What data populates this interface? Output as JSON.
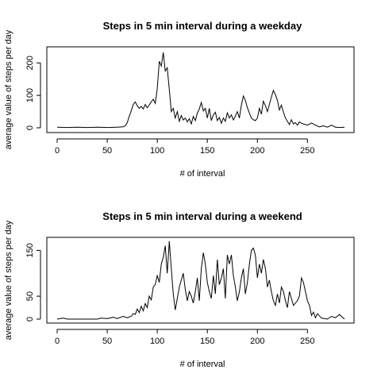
{
  "chart_data": [
    {
      "type": "line",
      "title": "Steps in 5 min interval during a weekday",
      "xlabel": "# of interval",
      "ylabel": "average value of steps per day",
      "xlim": [
        0,
        287
      ],
      "ylim": [
        0,
        230
      ],
      "xticks": [
        "0",
        "50",
        "100",
        "150",
        "200",
        "250"
      ],
      "yticks": [
        "0",
        "100",
        "200"
      ],
      "grid": false,
      "x": [
        0,
        10,
        20,
        30,
        40,
        50,
        60,
        66,
        68,
        70,
        72,
        74,
        76,
        78,
        80,
        82,
        84,
        86,
        88,
        90,
        92,
        94,
        96,
        98,
        100,
        102,
        104,
        106,
        108,
        110,
        112,
        114,
        116,
        118,
        120,
        122,
        124,
        126,
        128,
        130,
        132,
        134,
        136,
        138,
        140,
        142,
        144,
        146,
        148,
        150,
        152,
        154,
        156,
        158,
        160,
        162,
        164,
        166,
        168,
        170,
        172,
        174,
        176,
        178,
        180,
        182,
        184,
        186,
        188,
        190,
        192,
        194,
        196,
        198,
        200,
        202,
        204,
        206,
        208,
        210,
        212,
        214,
        216,
        218,
        220,
        222,
        224,
        226,
        228,
        230,
        232,
        234,
        236,
        238,
        240,
        242,
        244,
        246,
        248,
        250,
        254,
        258,
        262,
        266,
        270,
        274,
        278,
        282,
        287
      ],
      "series": [
        {
          "values": [
            2,
            1,
            2,
            1,
            2,
            1,
            2,
            3,
            6,
            16,
            35,
            52,
            72,
            80,
            68,
            60,
            66,
            58,
            72,
            62,
            70,
            80,
            88,
            75,
            120,
            205,
            190,
            232,
            175,
            185,
            118,
            50,
            60,
            30,
            50,
            20,
            38,
            24,
            30,
            18,
            28,
            12,
            35,
            22,
            45,
            58,
            78,
            52,
            60,
            30,
            60,
            22,
            40,
            48,
            22,
            32,
            14,
            30,
            20,
            46,
            30,
            40,
            24,
            36,
            50,
            30,
            70,
            98,
            85,
            62,
            45,
            30,
            25,
            22,
            30,
            60,
            42,
            82,
            68,
            50,
            72,
            95,
            115,
            102,
            85,
            55,
            70,
            48,
            30,
            20,
            10,
            25,
            12,
            16,
            8,
            18,
            14,
            12,
            10,
            8,
            15,
            8,
            3,
            6,
            2,
            8,
            2,
            1,
            2
          ]
        }
      ]
    },
    {
      "type": "line",
      "title": "Steps in 5 min interval during a weekend",
      "xlabel": "# of interval",
      "ylabel": "average value of steps per day",
      "xlim": [
        0,
        287
      ],
      "ylim": [
        0,
        175
      ],
      "xticks": [
        "0",
        "50",
        "100",
        "150",
        "200",
        "250"
      ],
      "yticks": [
        "0",
        "50",
        "150"
      ],
      "grid": false,
      "x": [
        0,
        6,
        10,
        20,
        40,
        44,
        50,
        56,
        60,
        66,
        70,
        74,
        76,
        78,
        80,
        82,
        84,
        86,
        88,
        90,
        92,
        94,
        96,
        98,
        100,
        102,
        104,
        106,
        108,
        110,
        112,
        114,
        116,
        118,
        120,
        122,
        124,
        126,
        128,
        130,
        132,
        134,
        136,
        138,
        140,
        142,
        144,
        146,
        148,
        150,
        152,
        154,
        156,
        158,
        160,
        162,
        164,
        166,
        168,
        170,
        172,
        174,
        176,
        178,
        180,
        182,
        184,
        186,
        188,
        190,
        192,
        194,
        196,
        198,
        200,
        202,
        204,
        206,
        208,
        210,
        212,
        214,
        216,
        218,
        220,
        222,
        224,
        226,
        228,
        230,
        232,
        234,
        236,
        238,
        240,
        242,
        244,
        246,
        248,
        250,
        252,
        254,
        256,
        258,
        260,
        264,
        270,
        274,
        278,
        282,
        287
      ],
      "series": [
        {
          "values": [
            0,
            2,
            0,
            0,
            0,
            2,
            1,
            4,
            1,
            6,
            3,
            6,
            12,
            10,
            22,
            14,
            28,
            18,
            34,
            25,
            50,
            42,
            70,
            75,
            95,
            80,
            120,
            135,
            160,
            100,
            170,
            110,
            55,
            20,
            45,
            70,
            85,
            100,
            65,
            40,
            60,
            50,
            35,
            60,
            90,
            40,
            110,
            145,
            120,
            80,
            60,
            45,
            95,
            55,
            130,
            75,
            90,
            110,
            45,
            140,
            120,
            140,
            95,
            70,
            40,
            60,
            90,
            110,
            55,
            80,
            120,
            150,
            155,
            140,
            90,
            120,
            100,
            130,
            110,
            70,
            85,
            60,
            40,
            30,
            55,
            35,
            70,
            60,
            40,
            25,
            60,
            45,
            30,
            35,
            40,
            50,
            90,
            80,
            60,
            40,
            30,
            8,
            15,
            3,
            12,
            2,
            0,
            6,
            3,
            10,
            0
          ]
        }
      ]
    }
  ]
}
